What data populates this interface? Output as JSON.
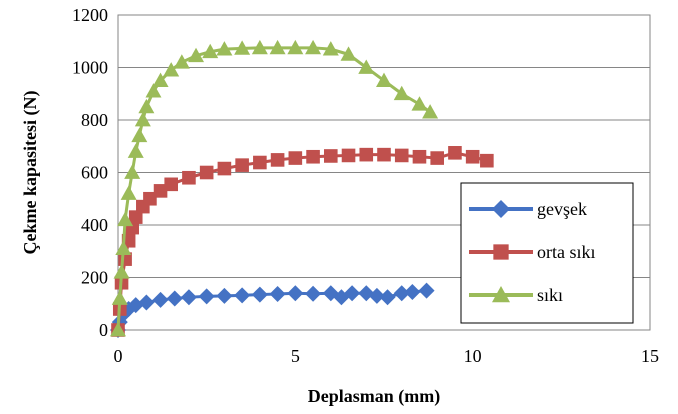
{
  "chart_data": {
    "type": "line",
    "title": "",
    "xlabel": "Deplasman (mm)",
    "ylabel": "Çekme kapasitesi (N)",
    "xlim": [
      0,
      15
    ],
    "ylim": [
      0,
      1200
    ],
    "xticks": [
      0,
      5,
      10,
      15
    ],
    "yticks": [
      0,
      200,
      400,
      600,
      800,
      1000,
      1200
    ],
    "x_tick_labels": [
      "0",
      "5",
      "10",
      "15"
    ],
    "y_tick_labels": [
      "0",
      "200",
      "400",
      "600",
      "800",
      "1000",
      "1200"
    ],
    "grid": "horizontal",
    "legend_position": "right",
    "series": [
      {
        "name": "gevşek",
        "color": "#4472C4",
        "marker": "diamond",
        "x": [
          0,
          0.05,
          0.15,
          0.3,
          0.5,
          0.8,
          1.2,
          1.6,
          2.0,
          2.5,
          3.0,
          3.5,
          4.0,
          4.5,
          5.0,
          5.5,
          6.0,
          6.3,
          6.6,
          7.0,
          7.3,
          7.6,
          8.0,
          8.3,
          8.7
        ],
        "y": [
          0,
          30,
          60,
          80,
          95,
          105,
          115,
          120,
          125,
          128,
          130,
          132,
          135,
          137,
          140,
          138,
          140,
          125,
          140,
          140,
          130,
          125,
          140,
          145,
          150
        ]
      },
      {
        "name": "orta sıkı",
        "color": "#C0504D",
        "marker": "square",
        "x": [
          0,
          0.05,
          0.1,
          0.2,
          0.3,
          0.4,
          0.5,
          0.7,
          0.9,
          1.2,
          1.5,
          2.0,
          2.5,
          3.0,
          3.5,
          4.0,
          4.5,
          5.0,
          5.5,
          6.0,
          6.5,
          7.0,
          7.5,
          8.0,
          8.5,
          9.0,
          9.5,
          10.0,
          10.4
        ],
        "y": [
          0,
          80,
          180,
          270,
          340,
          390,
          430,
          470,
          500,
          530,
          555,
          580,
          600,
          615,
          628,
          638,
          648,
          655,
          660,
          663,
          665,
          668,
          668,
          665,
          660,
          655,
          675,
          660,
          645
        ]
      },
      {
        "name": "sıkı",
        "color": "#9BBB59",
        "marker": "triangle",
        "x": [
          0,
          0.05,
          0.1,
          0.15,
          0.2,
          0.3,
          0.4,
          0.5,
          0.6,
          0.7,
          0.8,
          1.0,
          1.2,
          1.5,
          1.8,
          2.2,
          2.6,
          3.0,
          3.5,
          4.0,
          4.5,
          5.0,
          5.5,
          6.0,
          6.5,
          7.0,
          7.5,
          8.0,
          8.5,
          8.8
        ],
        "y": [
          0,
          120,
          220,
          310,
          420,
          520,
          600,
          680,
          740,
          800,
          850,
          910,
          950,
          990,
          1020,
          1045,
          1060,
          1070,
          1073,
          1075,
          1075,
          1075,
          1075,
          1070,
          1050,
          1000,
          950,
          900,
          860,
          830
        ]
      }
    ]
  }
}
